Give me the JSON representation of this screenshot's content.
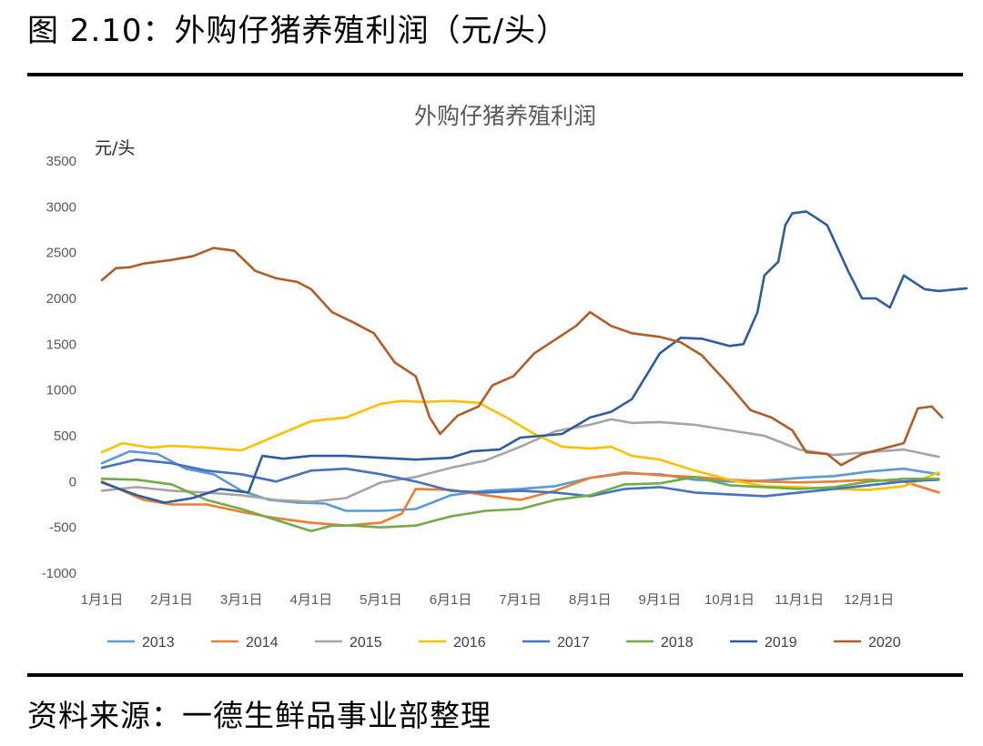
{
  "figure": {
    "title": "图 2.10：外购仔猪养殖利润（元/头）",
    "source": "资料来源：一德生鲜品事业部整理"
  },
  "chart_data": {
    "type": "line",
    "title": "外购仔猪养殖利润",
    "ylabel": "元/头",
    "xlabel": "",
    "ylim": [
      -1000,
      3500
    ],
    "yticks": [
      3500,
      3000,
      2500,
      2000,
      1500,
      1000,
      500,
      0,
      -500,
      -1000
    ],
    "x_domain": [
      0,
      12
    ],
    "xticks": [
      {
        "label": "1月1日",
        "x": 0
      },
      {
        "label": "2月1日",
        "x": 1
      },
      {
        "label": "3月1日",
        "x": 2
      },
      {
        "label": "4月1日",
        "x": 3
      },
      {
        "label": "5月1日",
        "x": 4
      },
      {
        "label": "6月1日",
        "x": 5
      },
      {
        "label": "7月1日",
        "x": 6
      },
      {
        "label": "8月1日",
        "x": 7
      },
      {
        "label": "9月1日",
        "x": 8
      },
      {
        "label": "10月1日",
        "x": 9
      },
      {
        "label": "11月1日",
        "x": 10
      },
      {
        "label": "12月1日",
        "x": 11
      }
    ],
    "grid": false,
    "legend_position": "bottom",
    "series": [
      {
        "name": "2013",
        "color": "#5B9BD5",
        "points": [
          [
            0,
            200
          ],
          [
            0.4,
            330
          ],
          [
            0.8,
            300
          ],
          [
            1.2,
            140
          ],
          [
            1.6,
            80
          ],
          [
            2.0,
            -100
          ],
          [
            2.4,
            -200
          ],
          [
            2.8,
            -230
          ],
          [
            3.2,
            -240
          ],
          [
            3.5,
            -320
          ],
          [
            4.0,
            -320
          ],
          [
            4.5,
            -300
          ],
          [
            5.0,
            -150
          ],
          [
            5.5,
            -100
          ],
          [
            6.0,
            -80
          ],
          [
            6.5,
            -50
          ],
          [
            7.0,
            40
          ],
          [
            7.5,
            90
          ],
          [
            8.0,
            80
          ],
          [
            8.5,
            20
          ],
          [
            9.0,
            0
          ],
          [
            9.5,
            10
          ],
          [
            10.0,
            40
          ],
          [
            10.5,
            60
          ],
          [
            11.0,
            110
          ],
          [
            11.5,
            140
          ],
          [
            12.0,
            80
          ]
        ]
      },
      {
        "name": "2014",
        "color": "#ED7D31",
        "points": [
          [
            0,
            0
          ],
          [
            0.3,
            -100
          ],
          [
            0.6,
            -200
          ],
          [
            1.0,
            -250
          ],
          [
            1.5,
            -250
          ],
          [
            2.0,
            -330
          ],
          [
            2.5,
            -400
          ],
          [
            3.0,
            -450
          ],
          [
            3.5,
            -480
          ],
          [
            4.0,
            -450
          ],
          [
            4.3,
            -350
          ],
          [
            4.5,
            -80
          ],
          [
            5.0,
            -90
          ],
          [
            5.5,
            -150
          ],
          [
            6.0,
            -200
          ],
          [
            6.5,
            -100
          ],
          [
            7.0,
            40
          ],
          [
            7.5,
            100
          ],
          [
            8.0,
            70
          ],
          [
            8.5,
            50
          ],
          [
            9.0,
            20
          ],
          [
            9.5,
            0
          ],
          [
            10.0,
            -10
          ],
          [
            10.5,
            0
          ],
          [
            11.0,
            20
          ],
          [
            11.5,
            0
          ],
          [
            12.0,
            -120
          ]
        ]
      },
      {
        "name": "2015",
        "color": "#A5A5A5",
        "points": [
          [
            0,
            -100
          ],
          [
            0.5,
            -60
          ],
          [
            1.0,
            -100
          ],
          [
            1.5,
            -120
          ],
          [
            2.0,
            -150
          ],
          [
            2.5,
            -200
          ],
          [
            3.0,
            -220
          ],
          [
            3.5,
            -180
          ],
          [
            4.0,
            -10
          ],
          [
            4.5,
            50
          ],
          [
            5.0,
            150
          ],
          [
            5.5,
            230
          ],
          [
            6.0,
            380
          ],
          [
            6.5,
            550
          ],
          [
            7.0,
            620
          ],
          [
            7.3,
            680
          ],
          [
            7.6,
            640
          ],
          [
            8.0,
            650
          ],
          [
            8.5,
            620
          ],
          [
            9.0,
            560
          ],
          [
            9.5,
            500
          ],
          [
            10.0,
            350
          ],
          [
            10.5,
            290
          ],
          [
            11.0,
            320
          ],
          [
            11.5,
            350
          ],
          [
            12.0,
            270
          ]
        ]
      },
      {
        "name": "2016",
        "color": "#FFC000",
        "points": [
          [
            0,
            320
          ],
          [
            0.3,
            420
          ],
          [
            0.7,
            370
          ],
          [
            1.0,
            390
          ],
          [
            1.5,
            370
          ],
          [
            2.0,
            340
          ],
          [
            2.5,
            500
          ],
          [
            3.0,
            660
          ],
          [
            3.5,
            700
          ],
          [
            4.0,
            850
          ],
          [
            4.3,
            880
          ],
          [
            4.6,
            870
          ],
          [
            5.0,
            880
          ],
          [
            5.4,
            860
          ],
          [
            5.8,
            700
          ],
          [
            6.2,
            520
          ],
          [
            6.6,
            380
          ],
          [
            7.0,
            360
          ],
          [
            7.3,
            380
          ],
          [
            7.6,
            280
          ],
          [
            8.0,
            240
          ],
          [
            8.5,
            120
          ],
          [
            9.0,
            20
          ],
          [
            9.5,
            -50
          ],
          [
            10.0,
            -60
          ],
          [
            10.5,
            -80
          ],
          [
            11.0,
            -90
          ],
          [
            11.5,
            -50
          ],
          [
            12.0,
            100
          ]
        ]
      },
      {
        "name": "2017",
        "color": "#4472C4",
        "points": [
          [
            0,
            150
          ],
          [
            0.5,
            240
          ],
          [
            1.0,
            200
          ],
          [
            1.5,
            120
          ],
          [
            2.0,
            80
          ],
          [
            2.5,
            0
          ],
          [
            3.0,
            120
          ],
          [
            3.5,
            140
          ],
          [
            4.0,
            80
          ],
          [
            4.5,
            0
          ],
          [
            5.0,
            -100
          ],
          [
            5.5,
            -120
          ],
          [
            6.0,
            -100
          ],
          [
            6.5,
            -120
          ],
          [
            7.0,
            -160
          ],
          [
            7.5,
            -80
          ],
          [
            8.0,
            -60
          ],
          [
            8.5,
            -120
          ],
          [
            9.0,
            -140
          ],
          [
            9.5,
            -160
          ],
          [
            10.0,
            -120
          ],
          [
            10.5,
            -80
          ],
          [
            11.0,
            -40
          ],
          [
            11.5,
            0
          ],
          [
            12.0,
            20
          ]
        ]
      },
      {
        "name": "2018",
        "color": "#70AD47",
        "points": [
          [
            0,
            30
          ],
          [
            0.5,
            20
          ],
          [
            1.0,
            -30
          ],
          [
            1.5,
            -200
          ],
          [
            2.0,
            -300
          ],
          [
            2.5,
            -420
          ],
          [
            3.0,
            -540
          ],
          [
            3.3,
            -480
          ],
          [
            3.6,
            -480
          ],
          [
            4.0,
            -500
          ],
          [
            4.5,
            -480
          ],
          [
            5.0,
            -380
          ],
          [
            5.5,
            -320
          ],
          [
            6.0,
            -300
          ],
          [
            6.5,
            -200
          ],
          [
            7.0,
            -150
          ],
          [
            7.5,
            -30
          ],
          [
            8.0,
            -20
          ],
          [
            8.5,
            50
          ],
          [
            9.0,
            -40
          ],
          [
            9.5,
            -60
          ],
          [
            10.0,
            -80
          ],
          [
            10.5,
            -60
          ],
          [
            11.0,
            0
          ],
          [
            11.5,
            30
          ],
          [
            12.0,
            30
          ]
        ]
      },
      {
        "name": "2019",
        "color": "#2E5D9E",
        "points": [
          [
            0,
            -10
          ],
          [
            0.5,
            -150
          ],
          [
            0.9,
            -230
          ],
          [
            1.3,
            -180
          ],
          [
            1.7,
            -80
          ],
          [
            2.1,
            -120
          ],
          [
            2.3,
            280
          ],
          [
            2.6,
            250
          ],
          [
            3.0,
            280
          ],
          [
            3.5,
            280
          ],
          [
            4.0,
            260
          ],
          [
            4.5,
            240
          ],
          [
            5.0,
            260
          ],
          [
            5.3,
            330
          ],
          [
            5.7,
            350
          ],
          [
            6.0,
            480
          ],
          [
            6.3,
            500
          ],
          [
            6.6,
            520
          ],
          [
            7.0,
            700
          ],
          [
            7.3,
            760
          ],
          [
            7.6,
            900
          ],
          [
            8.0,
            1400
          ],
          [
            8.3,
            1570
          ],
          [
            8.6,
            1560
          ],
          [
            9.0,
            1480
          ],
          [
            9.2,
            1500
          ],
          [
            9.4,
            1850
          ],
          [
            9.5,
            2250
          ],
          [
            9.7,
            2400
          ],
          [
            9.8,
            2800
          ],
          [
            9.9,
            2930
          ],
          [
            10.1,
            2950
          ],
          [
            10.4,
            2800
          ],
          [
            10.7,
            2300
          ],
          [
            10.9,
            2000
          ],
          [
            11.1,
            2000
          ],
          [
            11.3,
            1900
          ],
          [
            11.5,
            2250
          ],
          [
            11.8,
            2100
          ],
          [
            12.0,
            2080
          ],
          [
            12.4,
            2110
          ]
        ]
      },
      {
        "name": "2020",
        "color": "#B35C28",
        "points": [
          [
            0,
            2200
          ],
          [
            0.2,
            2330
          ],
          [
            0.4,
            2340
          ],
          [
            0.6,
            2380
          ],
          [
            1.0,
            2420
          ],
          [
            1.3,
            2460
          ],
          [
            1.6,
            2550
          ],
          [
            1.9,
            2520
          ],
          [
            2.2,
            2300
          ],
          [
            2.5,
            2220
          ],
          [
            2.8,
            2180
          ],
          [
            3.0,
            2100
          ],
          [
            3.3,
            1850
          ],
          [
            3.6,
            1740
          ],
          [
            3.9,
            1620
          ],
          [
            4.2,
            1300
          ],
          [
            4.5,
            1150
          ],
          [
            4.7,
            700
          ],
          [
            4.85,
            520
          ],
          [
            5.1,
            720
          ],
          [
            5.4,
            820
          ],
          [
            5.6,
            1050
          ],
          [
            5.9,
            1150
          ],
          [
            6.2,
            1400
          ],
          [
            6.5,
            1550
          ],
          [
            6.8,
            1700
          ],
          [
            7.0,
            1850
          ],
          [
            7.3,
            1700
          ],
          [
            7.6,
            1620
          ],
          [
            8.0,
            1580
          ],
          [
            8.3,
            1520
          ],
          [
            8.6,
            1380
          ],
          [
            9.0,
            1050
          ],
          [
            9.3,
            780
          ],
          [
            9.6,
            700
          ],
          [
            9.9,
            560
          ],
          [
            10.1,
            320
          ],
          [
            10.4,
            300
          ],
          [
            10.6,
            180
          ],
          [
            10.9,
            300
          ],
          [
            11.2,
            360
          ],
          [
            11.5,
            420
          ],
          [
            11.7,
            800
          ],
          [
            11.9,
            820
          ],
          [
            12.05,
            700
          ]
        ]
      }
    ]
  }
}
